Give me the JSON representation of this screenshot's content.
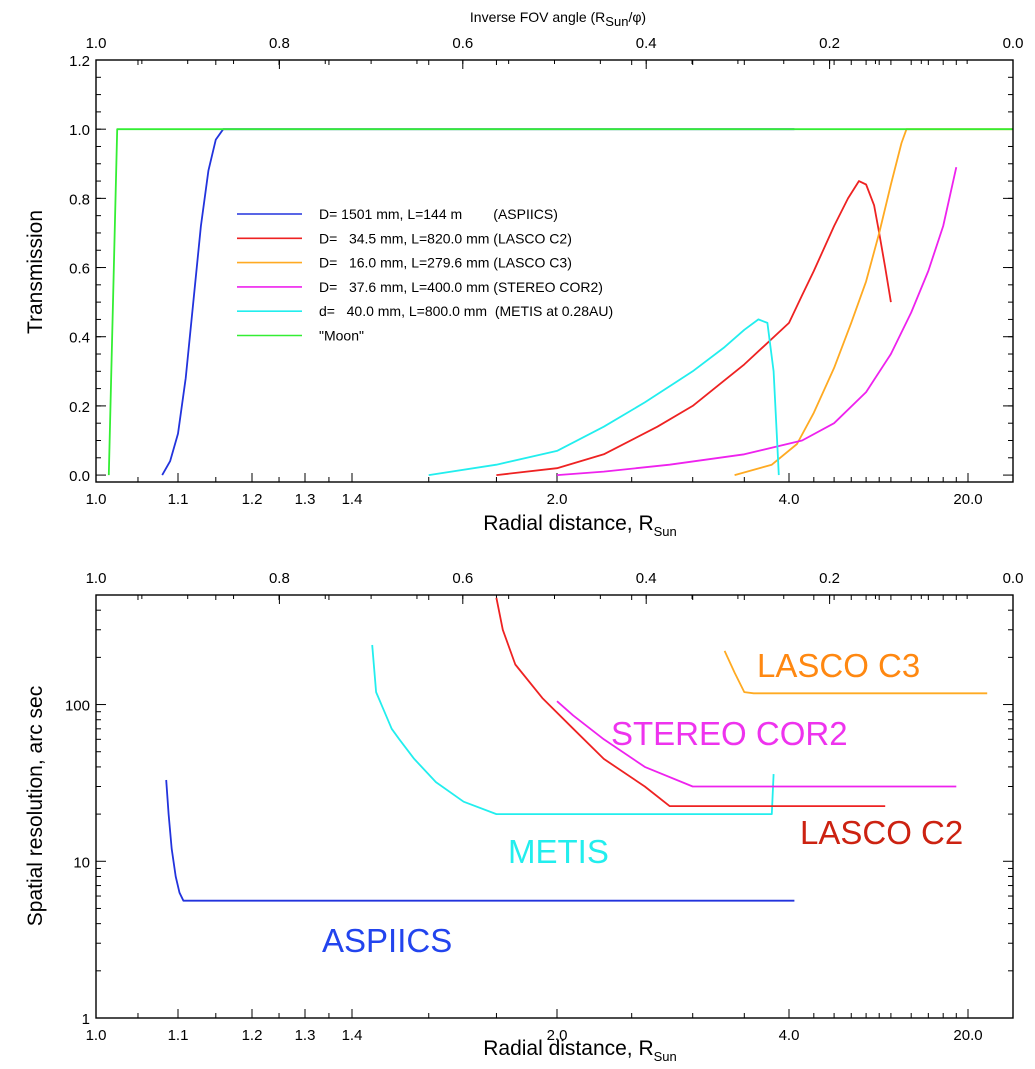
{
  "chart_data": [
    {
      "type": "line",
      "top_axis": {
        "label": "Inverse FOV angle (R",
        "label_sub": "Sun",
        "label_tail": "/φ)",
        "ticks": [
          {
            "value": 1.0,
            "label": "1.0"
          },
          {
            "value": 0.8,
            "label": "0.8"
          },
          {
            "value": 0.6,
            "label": "0.6"
          },
          {
            "value": 0.4,
            "label": "0.4"
          },
          {
            "value": 0.2,
            "label": "0.2"
          },
          {
            "value": 0.0,
            "label": "0.0"
          }
        ]
      },
      "xlabel": "Radial distance, R",
      "xlabel_sub": "Sun",
      "x_ticks": [
        {
          "value": 1.0,
          "label": "1.0"
        },
        {
          "value": 1.1,
          "label": "1.1"
        },
        {
          "value": 1.2,
          "label": "1.2"
        },
        {
          "value": 1.3,
          "label": "1.3"
        },
        {
          "value": 1.4,
          "label": "1.4"
        },
        {
          "value": 2.0,
          "label": "2.0"
        },
        {
          "value": 4.0,
          "label": "4.0"
        },
        {
          "value": 20.0,
          "label": "20.0"
        }
      ],
      "ylabel": "Transmission",
      "ylim": [
        -0.02,
        1.2
      ],
      "y_ticks": [
        {
          "value": 0.0,
          "label": "0.0"
        },
        {
          "value": 0.2,
          "label": "0.2"
        },
        {
          "value": 0.4,
          "label": "0.4"
        },
        {
          "value": 0.6,
          "label": "0.6"
        },
        {
          "value": 0.8,
          "label": "0.8"
        },
        {
          "value": 1.0,
          "label": "1.0"
        },
        {
          "value": 1.2,
          "label": "1.2"
        }
      ],
      "legend_position": "center-left",
      "series": [
        {
          "name": "D= 1501 mm, L=144 m        (ASPIICS)",
          "color": "#2233dd",
          "points": [
            [
              1.08,
              0
            ],
            [
              1.09,
              0.04
            ],
            [
              1.1,
              0.12
            ],
            [
              1.11,
              0.28
            ],
            [
              1.12,
              0.5
            ],
            [
              1.13,
              0.72
            ],
            [
              1.14,
              0.88
            ],
            [
              1.15,
              0.97
            ],
            [
              1.16,
              1.0
            ],
            [
              4.2,
              1.0
            ]
          ]
        },
        {
          "name": "D=   34.5 mm, L=820.0 mm (LASCO C2)",
          "color": "#ee2222",
          "points": [
            [
              1.8,
              0
            ],
            [
              2.0,
              0.02
            ],
            [
              2.3,
              0.06
            ],
            [
              2.7,
              0.14
            ],
            [
              3.0,
              0.2
            ],
            [
              3.5,
              0.32
            ],
            [
              4.0,
              0.44
            ],
            [
              4.5,
              0.52
            ],
            [
              5.0,
              0.59
            ],
            [
              6.0,
              0.72
            ],
            [
              6.8,
              0.8
            ],
            [
              7.5,
              0.85
            ],
            [
              8.0,
              0.84
            ],
            [
              8.6,
              0.78
            ],
            [
              9.0,
              0.7
            ],
            [
              9.5,
              0.6
            ],
            [
              10.0,
              0.5
            ]
          ]
        },
        {
          "name": "D=   16.0 mm, L=279.6 mm (LASCO C3)",
          "color": "#ffaa22",
          "points": [
            [
              3.4,
              0
            ],
            [
              3.8,
              0.03
            ],
            [
              4.3,
              0.09
            ],
            [
              5.0,
              0.18
            ],
            [
              6.0,
              0.31
            ],
            [
              7.0,
              0.44
            ],
            [
              8.0,
              0.56
            ],
            [
              9.0,
              0.7
            ],
            [
              10.0,
              0.84
            ],
            [
              11.0,
              0.96
            ],
            [
              11.5,
              1.0
            ],
            [
              25,
              1.0
            ]
          ]
        },
        {
          "name": "D=   37.6 mm, L=400.0 mm (STEREO COR2)",
          "color": "#ee22ee",
          "points": [
            [
              2.0,
              0
            ],
            [
              2.3,
              0.01
            ],
            [
              2.8,
              0.03
            ],
            [
              3.5,
              0.06
            ],
            [
              4.5,
              0.1
            ],
            [
              6.0,
              0.15
            ],
            [
              8.0,
              0.24
            ],
            [
              10.0,
              0.35
            ],
            [
              12.0,
              0.47
            ],
            [
              14.0,
              0.59
            ],
            [
              16.0,
              0.72
            ],
            [
              18.0,
              0.89
            ]
          ]
        },
        {
          "name": "d=   40.0 mm, L=800.0 mm  (METIS at 0.28AU)",
          "color": "#22eeee",
          "points": [
            [
              1.6,
              0
            ],
            [
              1.8,
              0.03
            ],
            [
              2.0,
              0.07
            ],
            [
              2.3,
              0.14
            ],
            [
              2.6,
              0.21
            ],
            [
              3.0,
              0.3
            ],
            [
              3.3,
              0.37
            ],
            [
              3.5,
              0.42
            ],
            [
              3.65,
              0.45
            ],
            [
              3.75,
              0.44
            ],
            [
              3.82,
              0.3
            ],
            [
              3.86,
              0.1
            ],
            [
              3.88,
              0
            ]
          ]
        },
        {
          "name": "\"Moon\"",
          "color": "#33ee33",
          "points": [
            [
              1.015,
              0
            ],
            [
              1.02,
              0.5
            ],
            [
              1.025,
              1.0
            ],
            [
              25,
              1.0
            ]
          ]
        }
      ]
    },
    {
      "type": "line",
      "top_axis": {
        "ticks": [
          {
            "value": 1.0,
            "label": "1.0"
          },
          {
            "value": 0.8,
            "label": "0.8"
          },
          {
            "value": 0.6,
            "label": "0.6"
          },
          {
            "value": 0.4,
            "label": "0.4"
          },
          {
            "value": 0.2,
            "label": "0.2"
          },
          {
            "value": 0.0,
            "label": "0.0"
          }
        ]
      },
      "xlabel": "Radial distance, R",
      "xlabel_sub": "Sun",
      "x_ticks": [
        {
          "value": 1.0,
          "label": "1.0"
        },
        {
          "value": 1.1,
          "label": "1.1"
        },
        {
          "value": 1.2,
          "label": "1.2"
        },
        {
          "value": 1.3,
          "label": "1.3"
        },
        {
          "value": 1.4,
          "label": "1.4"
        },
        {
          "value": 2.0,
          "label": "2.0"
        },
        {
          "value": 4.0,
          "label": "4.0"
        },
        {
          "value": 20.0,
          "label": "20.0"
        }
      ],
      "ylabel": "Spatial resolution, arc sec",
      "y_scale": "log",
      "ylim": [
        1,
        500
      ],
      "y_ticks": [
        {
          "value": 1,
          "label": "1"
        },
        {
          "value": 10,
          "label": "10"
        },
        {
          "value": 100,
          "label": "100"
        }
      ],
      "series": [
        {
          "name": "ASPIICS",
          "color": "#2233dd",
          "label_color": "#2244ee",
          "points": [
            [
              1.085,
              33
            ],
            [
              1.088,
              20
            ],
            [
              1.092,
              12
            ],
            [
              1.097,
              8
            ],
            [
              1.102,
              6.3
            ],
            [
              1.107,
              5.6
            ],
            [
              4.2,
              5.6
            ]
          ]
        },
        {
          "name": "METIS",
          "color": "#22eeee",
          "label_color": "#22eeee",
          "points": [
            [
              1.45,
              240
            ],
            [
              1.46,
              120
            ],
            [
              1.5,
              70
            ],
            [
              1.52,
              60
            ],
            [
              1.56,
              45
            ],
            [
              1.62,
              32
            ],
            [
              1.7,
              24
            ],
            [
              1.8,
              20
            ],
            [
              3.8,
              20
            ],
            [
              3.82,
              36
            ]
          ]
        },
        {
          "name": "LASCO C2",
          "color": "#ee2222",
          "label_color": "#cc2211",
          "points": [
            [
              1.8,
              480
            ],
            [
              1.82,
              300
            ],
            [
              1.86,
              180
            ],
            [
              1.95,
              110
            ],
            [
              2.1,
              70
            ],
            [
              2.3,
              45
            ],
            [
              2.6,
              30
            ],
            [
              2.8,
              22.5
            ],
            [
              9.5,
              22.5
            ]
          ]
        },
        {
          "name": "STEREO COR2",
          "color": "#ee22ee",
          "label_color": "#ee33ee",
          "points": [
            [
              2.0,
              105
            ],
            [
              2.1,
              85
            ],
            [
              2.3,
              60
            ],
            [
              2.6,
              40
            ],
            [
              3.0,
              30
            ],
            [
              3.2,
              30
            ],
            [
              18,
              30
            ]
          ]
        },
        {
          "name": "LASCO C3",
          "color": "#ffaa22",
          "label_color": "#ff8811",
          "points": [
            [
              3.3,
              220
            ],
            [
              3.4,
              160
            ],
            [
              3.5,
              120
            ],
            [
              3.6,
              118
            ],
            [
              22,
              118
            ]
          ]
        }
      ]
    }
  ]
}
